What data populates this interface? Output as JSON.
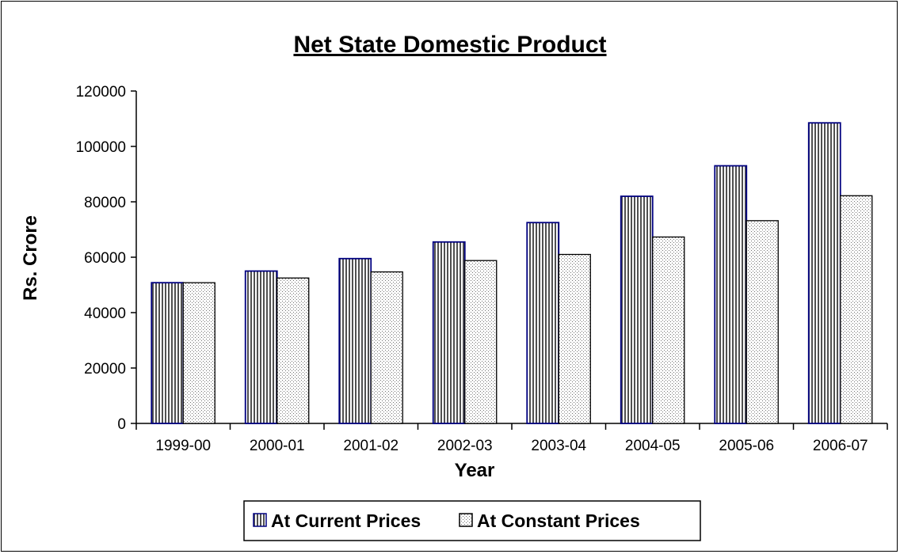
{
  "chart_data": {
    "type": "bar",
    "title": "Net State Domestic Product",
    "xlabel": "Year",
    "ylabel": "Rs. Crore",
    "categories": [
      "1999-00",
      "2000-01",
      "2001-02",
      "2002-03",
      "2003-04",
      "2004-05",
      "2005-06",
      "2006-07"
    ],
    "series": [
      {
        "name": "At Current Prices",
        "values": [
          50800,
          55000,
          59500,
          65500,
          72500,
          82000,
          93000,
          108500
        ],
        "color": "#9a9a9a",
        "border": "#000080"
      },
      {
        "name": "At Constant Prices",
        "values": [
          50800,
          52500,
          54700,
          58800,
          61000,
          67300,
          73200,
          82200
        ],
        "color": "#e8e8e8",
        "border": "#000000"
      }
    ],
    "ylim": [
      0,
      120000
    ],
    "yticks": [
      0,
      20000,
      40000,
      60000,
      80000,
      100000,
      120000
    ],
    "grid": false,
    "legend_position": "bottom"
  }
}
